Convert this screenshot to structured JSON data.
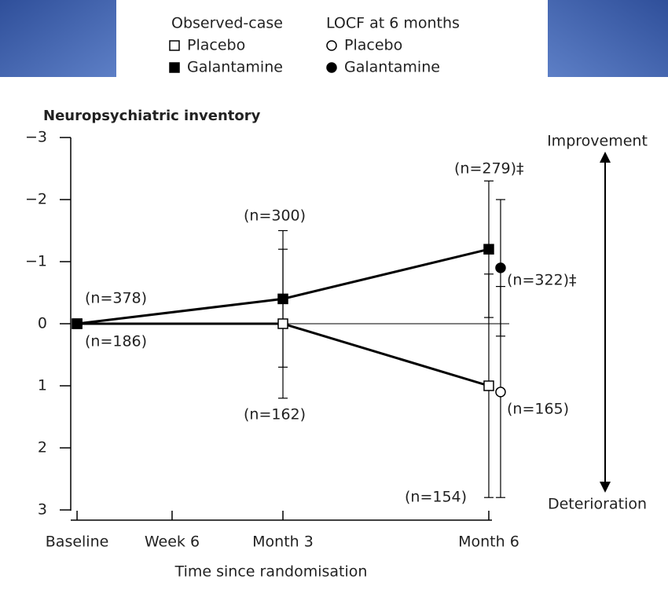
{
  "chart_data": {
    "type": "line",
    "title": "Neuropsychiatric inventory",
    "xlabel": "Time since randomisation",
    "legend_groups": [
      "Observed-case",
      "LOCF at 6 months"
    ],
    "direction_labels": [
      "Improvement",
      "Deterioration"
    ],
    "xlim": [
      -0.4,
      26.2
    ],
    "xticks": [
      {
        "value": 0,
        "label": "Baseline"
      },
      {
        "value": 6,
        "label": "Week 6"
      },
      {
        "value": 13,
        "label": "Month 3"
      },
      {
        "value": 26,
        "label": "Month 6"
      }
    ],
    "ylim": [
      3,
      -3
    ],
    "yticks": [
      {
        "value": -3,
        "label": "−3"
      },
      {
        "value": -2,
        "label": "−2"
      },
      {
        "value": -1,
        "label": "−1"
      },
      0,
      1,
      2,
      3
    ],
    "series": [
      {
        "name": "Placebo",
        "marker": "square",
        "filled": false,
        "color": "#000000",
        "x": [
          0,
          13,
          26
        ],
        "values": [
          0,
          0,
          1
        ],
        "errors": [
          null,
          1.2,
          1.8
        ]
      },
      {
        "name": "Galantamine",
        "marker": "square",
        "filled": true,
        "color": "#000000",
        "x": [
          0,
          13,
          26
        ],
        "values": [
          0,
          -0.4,
          -1.2
        ],
        "errors": [
          null,
          1.1,
          1.1
        ]
      },
      {
        "name": "Placebo",
        "marker": "circle",
        "filled": false,
        "color": "#000000",
        "x": [
          26
        ],
        "values": [
          1.1
        ],
        "errors": [
          1.7
        ]
      },
      {
        "name": "Galantamine",
        "marker": "circle",
        "filled": true,
        "color": "#000000",
        "x": [
          26
        ],
        "values": [
          -0.9
        ],
        "errors": [
          1.1
        ]
      }
    ],
    "annotations": [
      "(n=378)",
      "(n=186)",
      "(n=300)",
      "(n=162)",
      "(n=279)‡",
      "(n=322)‡",
      "(n=165)",
      "(n=154)"
    ]
  }
}
